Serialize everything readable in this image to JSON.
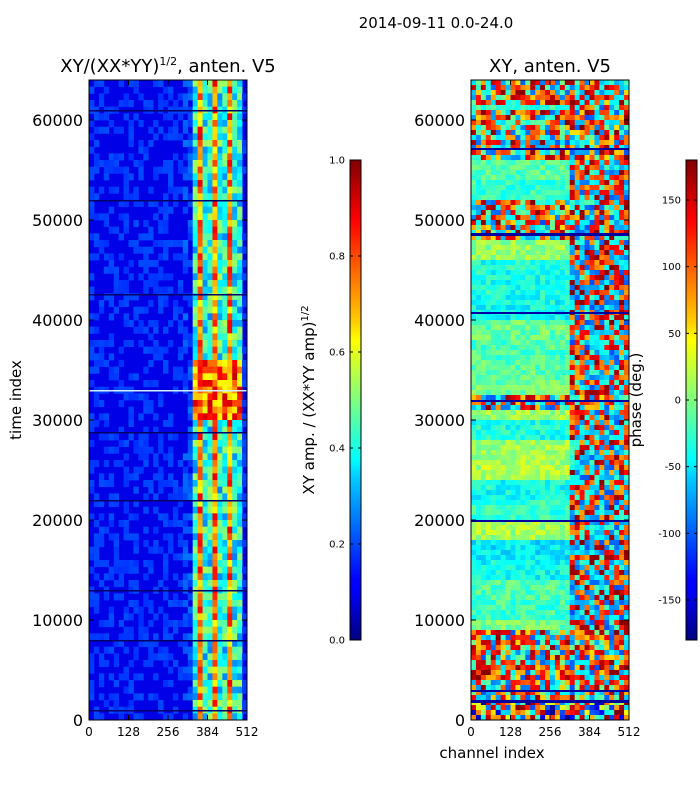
{
  "figure": {
    "suptitle": "2014-09-11 0.0-24.0"
  },
  "chart_data": [
    {
      "type": "heatmap",
      "title_main": "XY/(XX*YY)",
      "title_exp": "1/2",
      "title_tail": ", anten. V5",
      "xlabel": "",
      "ylabel": "time index",
      "xlim": [
        0,
        512
      ],
      "ylim": [
        0,
        64000
      ],
      "x_ticks": [
        0,
        128,
        256,
        384,
        512
      ],
      "y_ticks": [
        0,
        10000,
        20000,
        30000,
        40000,
        50000,
        60000
      ],
      "colorbar": {
        "label_main": "XY amp. / (XX*YY amp)",
        "label_exp": "1/2",
        "range": [
          0.0,
          1.0
        ],
        "ticks": [
          "0.0",
          "0.2",
          "0.4",
          "0.6",
          "0.8",
          "1.0"
        ],
        "colormap": "jet"
      },
      "description_values": {
        "baseline_amplitude": 0.12,
        "bright_band_channels": [
          340,
          500
        ],
        "bright_time_range": [
          30000,
          36000
        ],
        "peak_amplitude": 0.9
      }
    },
    {
      "type": "heatmap",
      "title_main": "XY, anten. V5",
      "xlabel": "channel index",
      "ylabel": "",
      "xlim": [
        0,
        512
      ],
      "ylim": [
        0,
        64000
      ],
      "x_ticks": [
        0,
        128,
        256,
        384,
        512
      ],
      "y_ticks": [
        0,
        10000,
        20000,
        30000,
        40000,
        50000,
        60000
      ],
      "colorbar": {
        "label_main": "phase (deg.)",
        "range": [
          -180,
          180
        ],
        "ticks": [
          "-150",
          "-100",
          "-50",
          "0",
          "50",
          "100",
          "150"
        ],
        "colormap": "jet"
      }
    }
  ],
  "colors": {
    "frame": "#000000",
    "background": "#ffffff"
  }
}
